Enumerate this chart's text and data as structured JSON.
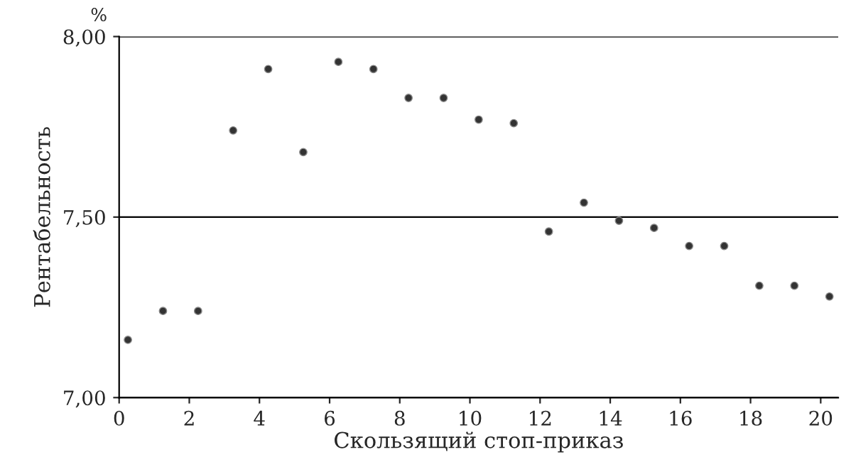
{
  "chart_data": {
    "type": "scatter",
    "xlabel": "Скользящий стоп-приказ",
    "ylabel": "Рентабельность",
    "annotations": [
      "%"
    ],
    "x": [
      0.25,
      1.25,
      2.25,
      3.25,
      4.25,
      5.25,
      6.25,
      7.25,
      8.25,
      9.25,
      10.25,
      11.25,
      12.25,
      13.25,
      14.25,
      15.25,
      16.25,
      17.25,
      18.25,
      19.25,
      20.25
    ],
    "series": [
      {
        "color": "#333333",
        "values": [
          7.16,
          7.24,
          7.24,
          7.74,
          7.91,
          7.68,
          7.93,
          7.91,
          7.83,
          7.83,
          7.77,
          7.76,
          7.46,
          7.54,
          7.49,
          7.47,
          7.42,
          7.42,
          7.31,
          7.31,
          7.28
        ]
      }
    ],
    "xlim": [
      0,
      20.5
    ],
    "xticks": [
      0,
      2,
      4,
      6,
      8,
      10,
      12,
      14,
      16,
      18,
      20
    ],
    "ylim": [
      7,
      8
    ],
    "yticks": [
      {
        "value": 7,
        "label": "7,00"
      },
      {
        "value": 7.5,
        "label": "7,50"
      },
      {
        "value": 8,
        "label": "8,00"
      }
    ],
    "grid": "y",
    "marker": "circle",
    "legend": false
  }
}
